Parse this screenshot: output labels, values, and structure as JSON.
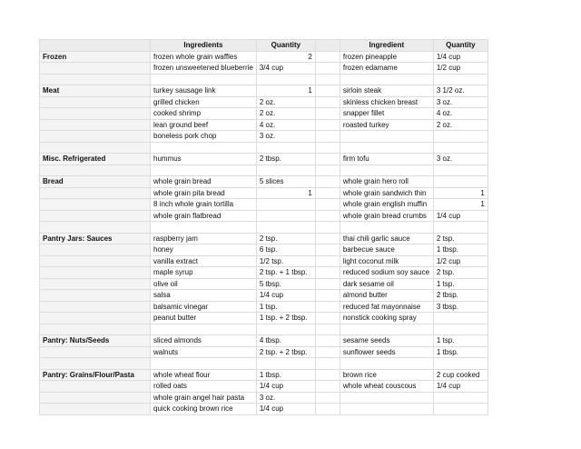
{
  "table": {
    "headers": {
      "left": [
        "Ingredients",
        "Quantity"
      ],
      "right": [
        "Ingredient",
        "Quantity"
      ]
    },
    "sections": [
      {
        "category": "Frozen",
        "rows": [
          [
            "frozen whole grain waffles",
            2,
            "frozen pineapple",
            "1/4 cup"
          ],
          [
            "frozen unsweetened blueberrie",
            "3/4 cup",
            "frozen edamame",
            "1/2 cup"
          ]
        ]
      },
      {
        "category": "Meat",
        "rows": [
          [
            "turkey sausage link",
            1,
            "sirloin steak",
            "3 1/2 oz."
          ],
          [
            "grilled chicken",
            "2 oz.",
            "skinless chicken breast",
            "3 oz."
          ],
          [
            "cooked shrimp",
            "2 oz.",
            "snapper fillet",
            "4 oz."
          ],
          [
            "lean ground beef",
            "4 oz.",
            "roasted turkey",
            "2 oz."
          ],
          [
            "boneless pork chop",
            "3 oz.",
            null,
            null
          ]
        ]
      },
      {
        "category": "Misc. Refrigerated",
        "rows": [
          [
            "hummus",
            "2 tbsp.",
            "firm tofu",
            "3 oz."
          ]
        ]
      },
      {
        "category": "Bread",
        "rows": [
          [
            "whole grain bread",
            "5 slices",
            "whole grain hero roll",
            null
          ],
          [
            "whole grain pita bread",
            1,
            "whole grain sandwich thin",
            1
          ],
          [
            "8 inch whole grain tortilla",
            null,
            "whole grain english muffin",
            1
          ],
          [
            "whole grain flatbread",
            null,
            "whole grain bread crumbs",
            "1/4 cup"
          ]
        ]
      },
      {
        "category": "Pantry Jars: Sauces",
        "rows": [
          [
            "raspberry jam",
            "2 tsp.",
            "thai chili garlic sauce",
            "2 tsp."
          ],
          [
            "honey",
            "6 tsp.",
            "barbecue sauce",
            "1 tbsp."
          ],
          [
            "vanilla extract",
            "1/2 tsp.",
            "light coconut milk",
            "1/2 cup"
          ],
          [
            "maple syrup",
            "2 tsp. + 1 tbsp.",
            "reduced sodium soy sauce",
            "2 tsp."
          ],
          [
            "olive oil",
            "5 tbsp.",
            "dark sesame oil",
            "1 tsp."
          ],
          [
            "salsa",
            "1/4 cup",
            "almond butter",
            "2 tbsp."
          ],
          [
            "balsamic vinegar",
            "1 tsp.",
            "reduced fat mayonnaise",
            "3 tbsp."
          ],
          [
            "peanut butter",
            "1 tsp. + 2 tbsp.",
            "nonstick cooking spray",
            null
          ]
        ]
      },
      {
        "category": "Pantry: Nuts/Seeds",
        "rows": [
          [
            "sliced almonds",
            "4 tbsp.",
            "sesame seeds",
            "1 tsp."
          ],
          [
            "walnuts",
            "2 tsp. + 2 tbsp.",
            "sunflower seeds",
            "1 tbsp."
          ]
        ]
      },
      {
        "category": "Pantry: Grains/Flour/Pasta",
        "rows": [
          [
            "whole wheat flour",
            "1 tbsp.",
            "brown rice",
            "2 cup cooked"
          ],
          [
            "rolled oats",
            "1/4 cup",
            "whole wheat couscous",
            "1/4 cup"
          ],
          [
            "whole grain angel hair pasta",
            "3 oz.",
            null,
            null
          ],
          [
            "quick cooking brown rice",
            "1/4 cup",
            null,
            null
          ]
        ]
      }
    ]
  }
}
